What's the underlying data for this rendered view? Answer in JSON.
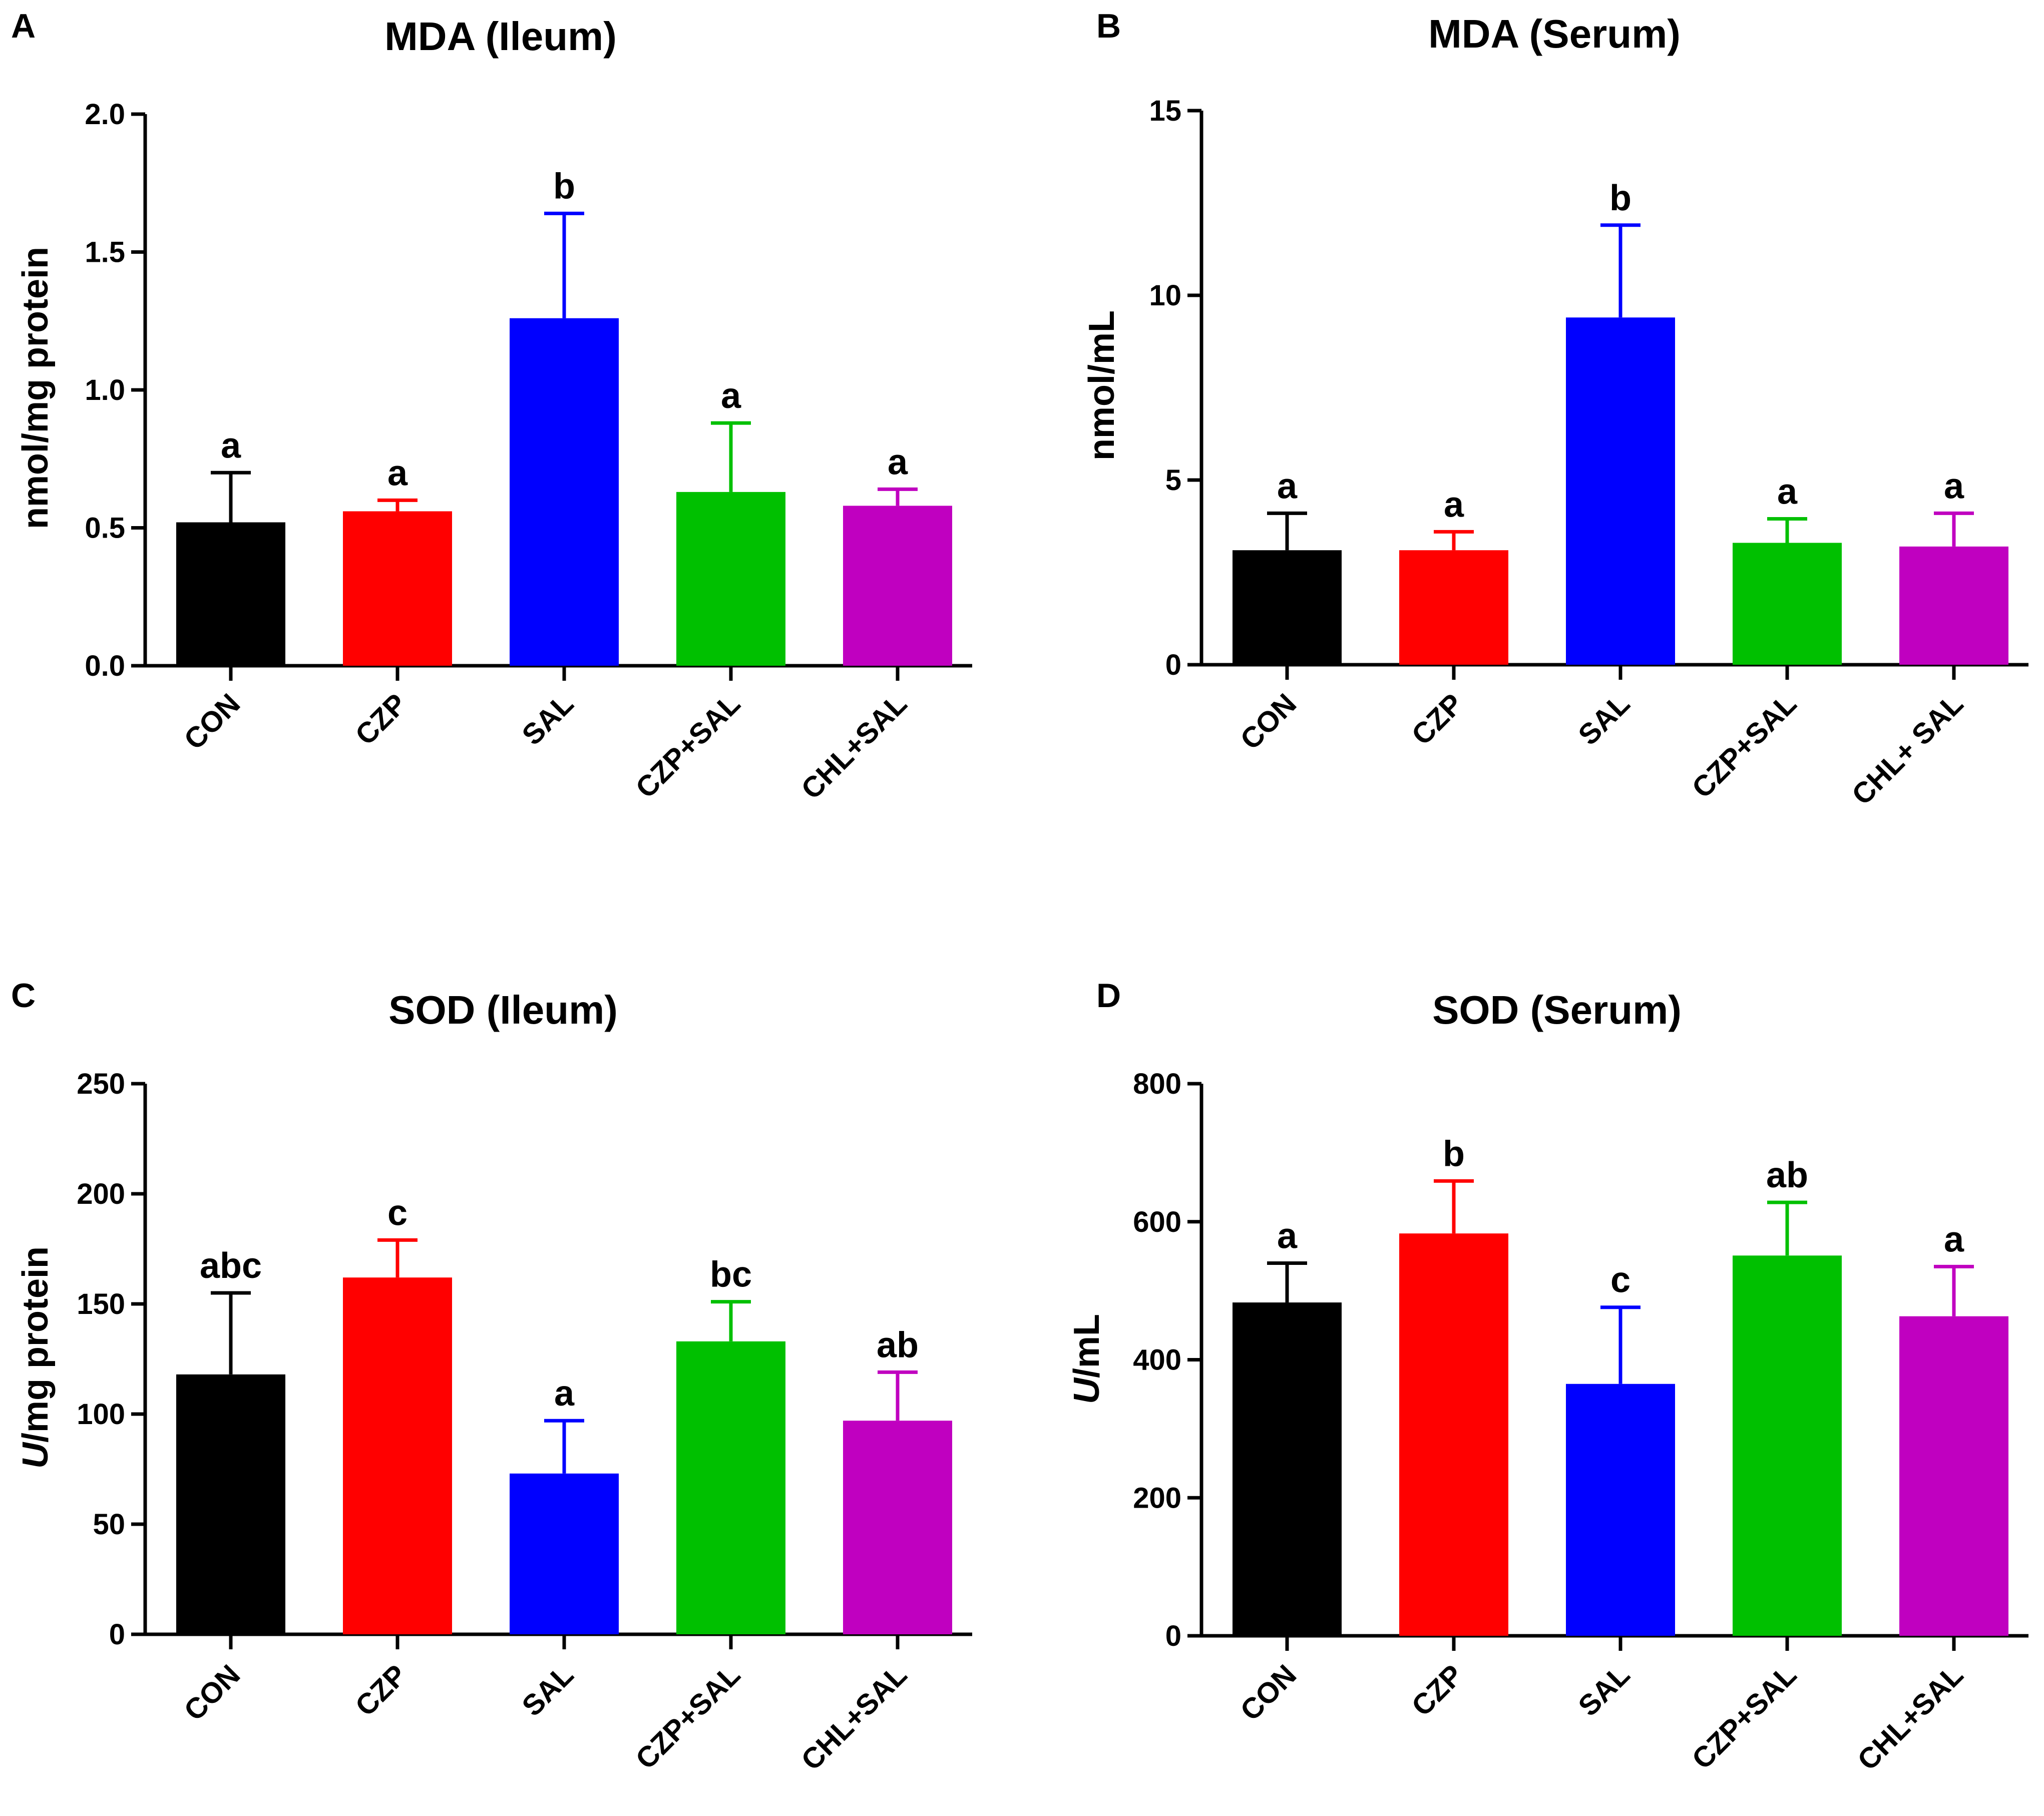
{
  "chart_data": [
    {
      "panel": "A",
      "type": "bar",
      "title": "MDA (Ileum)",
      "ylabel": "nmol/mg protein",
      "ylim": [
        0,
        2.0
      ],
      "yticks": [
        "0.0",
        "0.5",
        "1.0",
        "1.5",
        "2.0"
      ],
      "ytick_values": [
        0,
        0.5,
        1.0,
        1.5,
        2.0
      ],
      "categories": [
        "CON",
        "CZP",
        "SAL",
        "CZP+SAL",
        "CHL+SAL"
      ],
      "values": [
        0.52,
        0.56,
        1.26,
        0.63,
        0.58
      ],
      "errors": [
        0.18,
        0.04,
        0.38,
        0.25,
        0.06
      ],
      "significance": [
        "a",
        "a",
        "b",
        "a",
        "a"
      ],
      "colors": [
        "#000000",
        "#ff0000",
        "#0000ff",
        "#00c000",
        "#c000c0"
      ]
    },
    {
      "panel": "B",
      "type": "bar",
      "title": "MDA (Serum)",
      "ylabel": "nmol/mL",
      "ylim": [
        0,
        15
      ],
      "yticks": [
        "0",
        "5",
        "10",
        "15"
      ],
      "ytick_values": [
        0,
        5,
        10,
        15
      ],
      "categories": [
        "CON",
        "CZP",
        "SAL",
        "CZP+SAL",
        "CHL+ SAL"
      ],
      "values": [
        3.1,
        3.1,
        9.4,
        3.3,
        3.2
      ],
      "errors": [
        1.0,
        0.5,
        2.5,
        0.65,
        0.9
      ],
      "significance": [
        "a",
        "a",
        "b",
        "a",
        "a"
      ],
      "colors": [
        "#000000",
        "#ff0000",
        "#0000ff",
        "#00c000",
        "#c000c0"
      ]
    },
    {
      "panel": "C",
      "type": "bar",
      "title": "SOD (Ileum)",
      "ylabel_italic": "U",
      "ylabel": "/mg protein",
      "ylim": [
        0,
        250
      ],
      "yticks": [
        "0",
        "50",
        "100",
        "150",
        "200",
        "250"
      ],
      "ytick_values": [
        0,
        50,
        100,
        150,
        200,
        250
      ],
      "categories": [
        "CON",
        "CZP",
        "SAL",
        "CZP+SAL",
        "CHL+SAL"
      ],
      "values": [
        118,
        162,
        73,
        133,
        97
      ],
      "errors": [
        37,
        17,
        24,
        18,
        22
      ],
      "significance": [
        "abc",
        "c",
        "a",
        "bc",
        "ab"
      ],
      "colors": [
        "#000000",
        "#ff0000",
        "#0000ff",
        "#00c000",
        "#c000c0"
      ]
    },
    {
      "panel": "D",
      "type": "bar",
      "title": "SOD (Serum)",
      "ylabel_italic": "U",
      "ylabel": "/mL",
      "ylim": [
        0,
        800
      ],
      "yticks": [
        "0",
        "200",
        "400",
        "600",
        "800"
      ],
      "ytick_values": [
        0,
        200,
        400,
        600,
        800
      ],
      "categories": [
        "CON",
        "CZP",
        "SAL",
        "CZP+SAL",
        "CHL+SAL"
      ],
      "values": [
        483,
        583,
        365,
        551,
        463
      ],
      "errors": [
        57,
        76,
        111,
        77,
        72
      ],
      "significance": [
        "a",
        "b",
        "c",
        "ab",
        "a"
      ],
      "colors": [
        "#000000",
        "#ff0000",
        "#0000ff",
        "#00c000",
        "#c000c0"
      ]
    }
  ]
}
